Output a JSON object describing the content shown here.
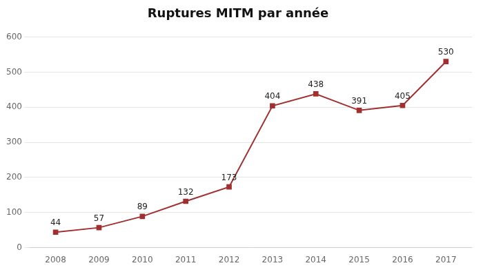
{
  "chart_data": {
    "type": "line",
    "title": "Ruptures MITM par année",
    "x": [
      2008,
      2009,
      2010,
      2011,
      2012,
      2013,
      2014,
      2015,
      2016,
      2017
    ],
    "values": [
      44,
      57,
      89,
      132,
      173,
      404,
      438,
      391,
      405,
      530
    ],
    "color": "#a03030",
    "marker": "square",
    "xlim": [
      2007.4,
      2017.6
    ],
    "xticks": [
      2008,
      2009,
      2010,
      2011,
      2012,
      2013,
      2014,
      2015,
      2016,
      2017
    ],
    "ylim": [
      0,
      600
    ],
    "yticks": [
      0,
      100,
      200,
      300,
      400,
      500,
      600
    ],
    "grid": true,
    "data_labels": true
  }
}
